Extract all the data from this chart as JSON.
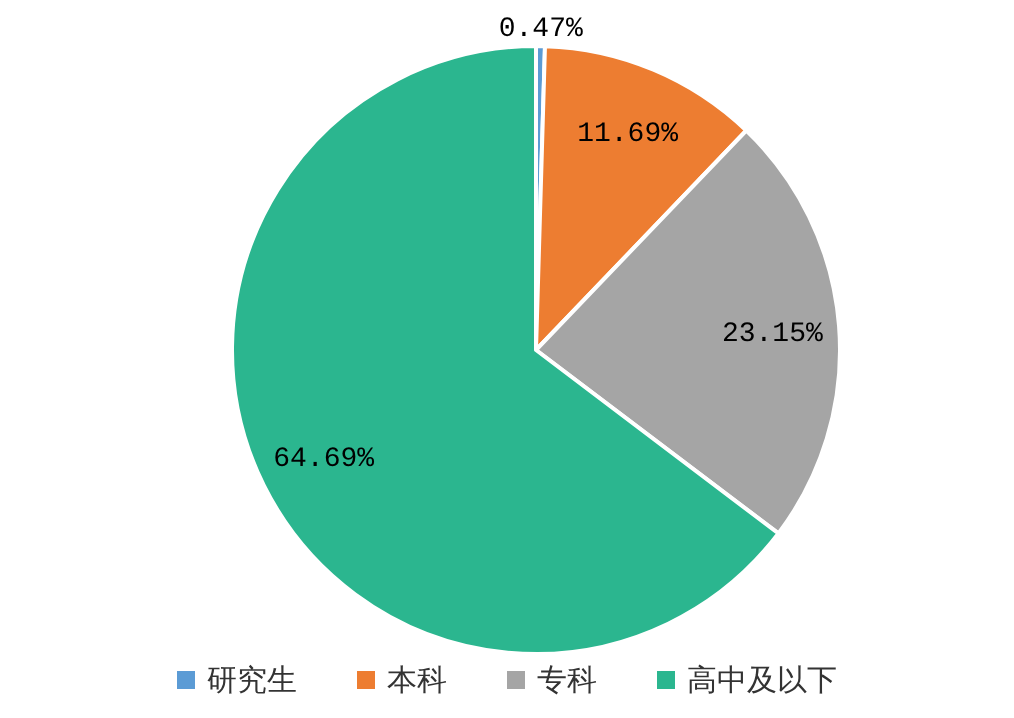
{
  "chart_data": {
    "type": "pie",
    "categories": [
      "研究生",
      "本科",
      "专科",
      "高中及以下"
    ],
    "values": [
      0.47,
      11.69,
      23.15,
      64.69
    ],
    "colors": [
      "#5b9bd5",
      "#ed7d31",
      "#a5a5a5",
      "#2bb68f"
    ],
    "value_labels": [
      "0.47%",
      "11.69%",
      "23.15%",
      "64.69%"
    ],
    "legend": "bottom"
  }
}
